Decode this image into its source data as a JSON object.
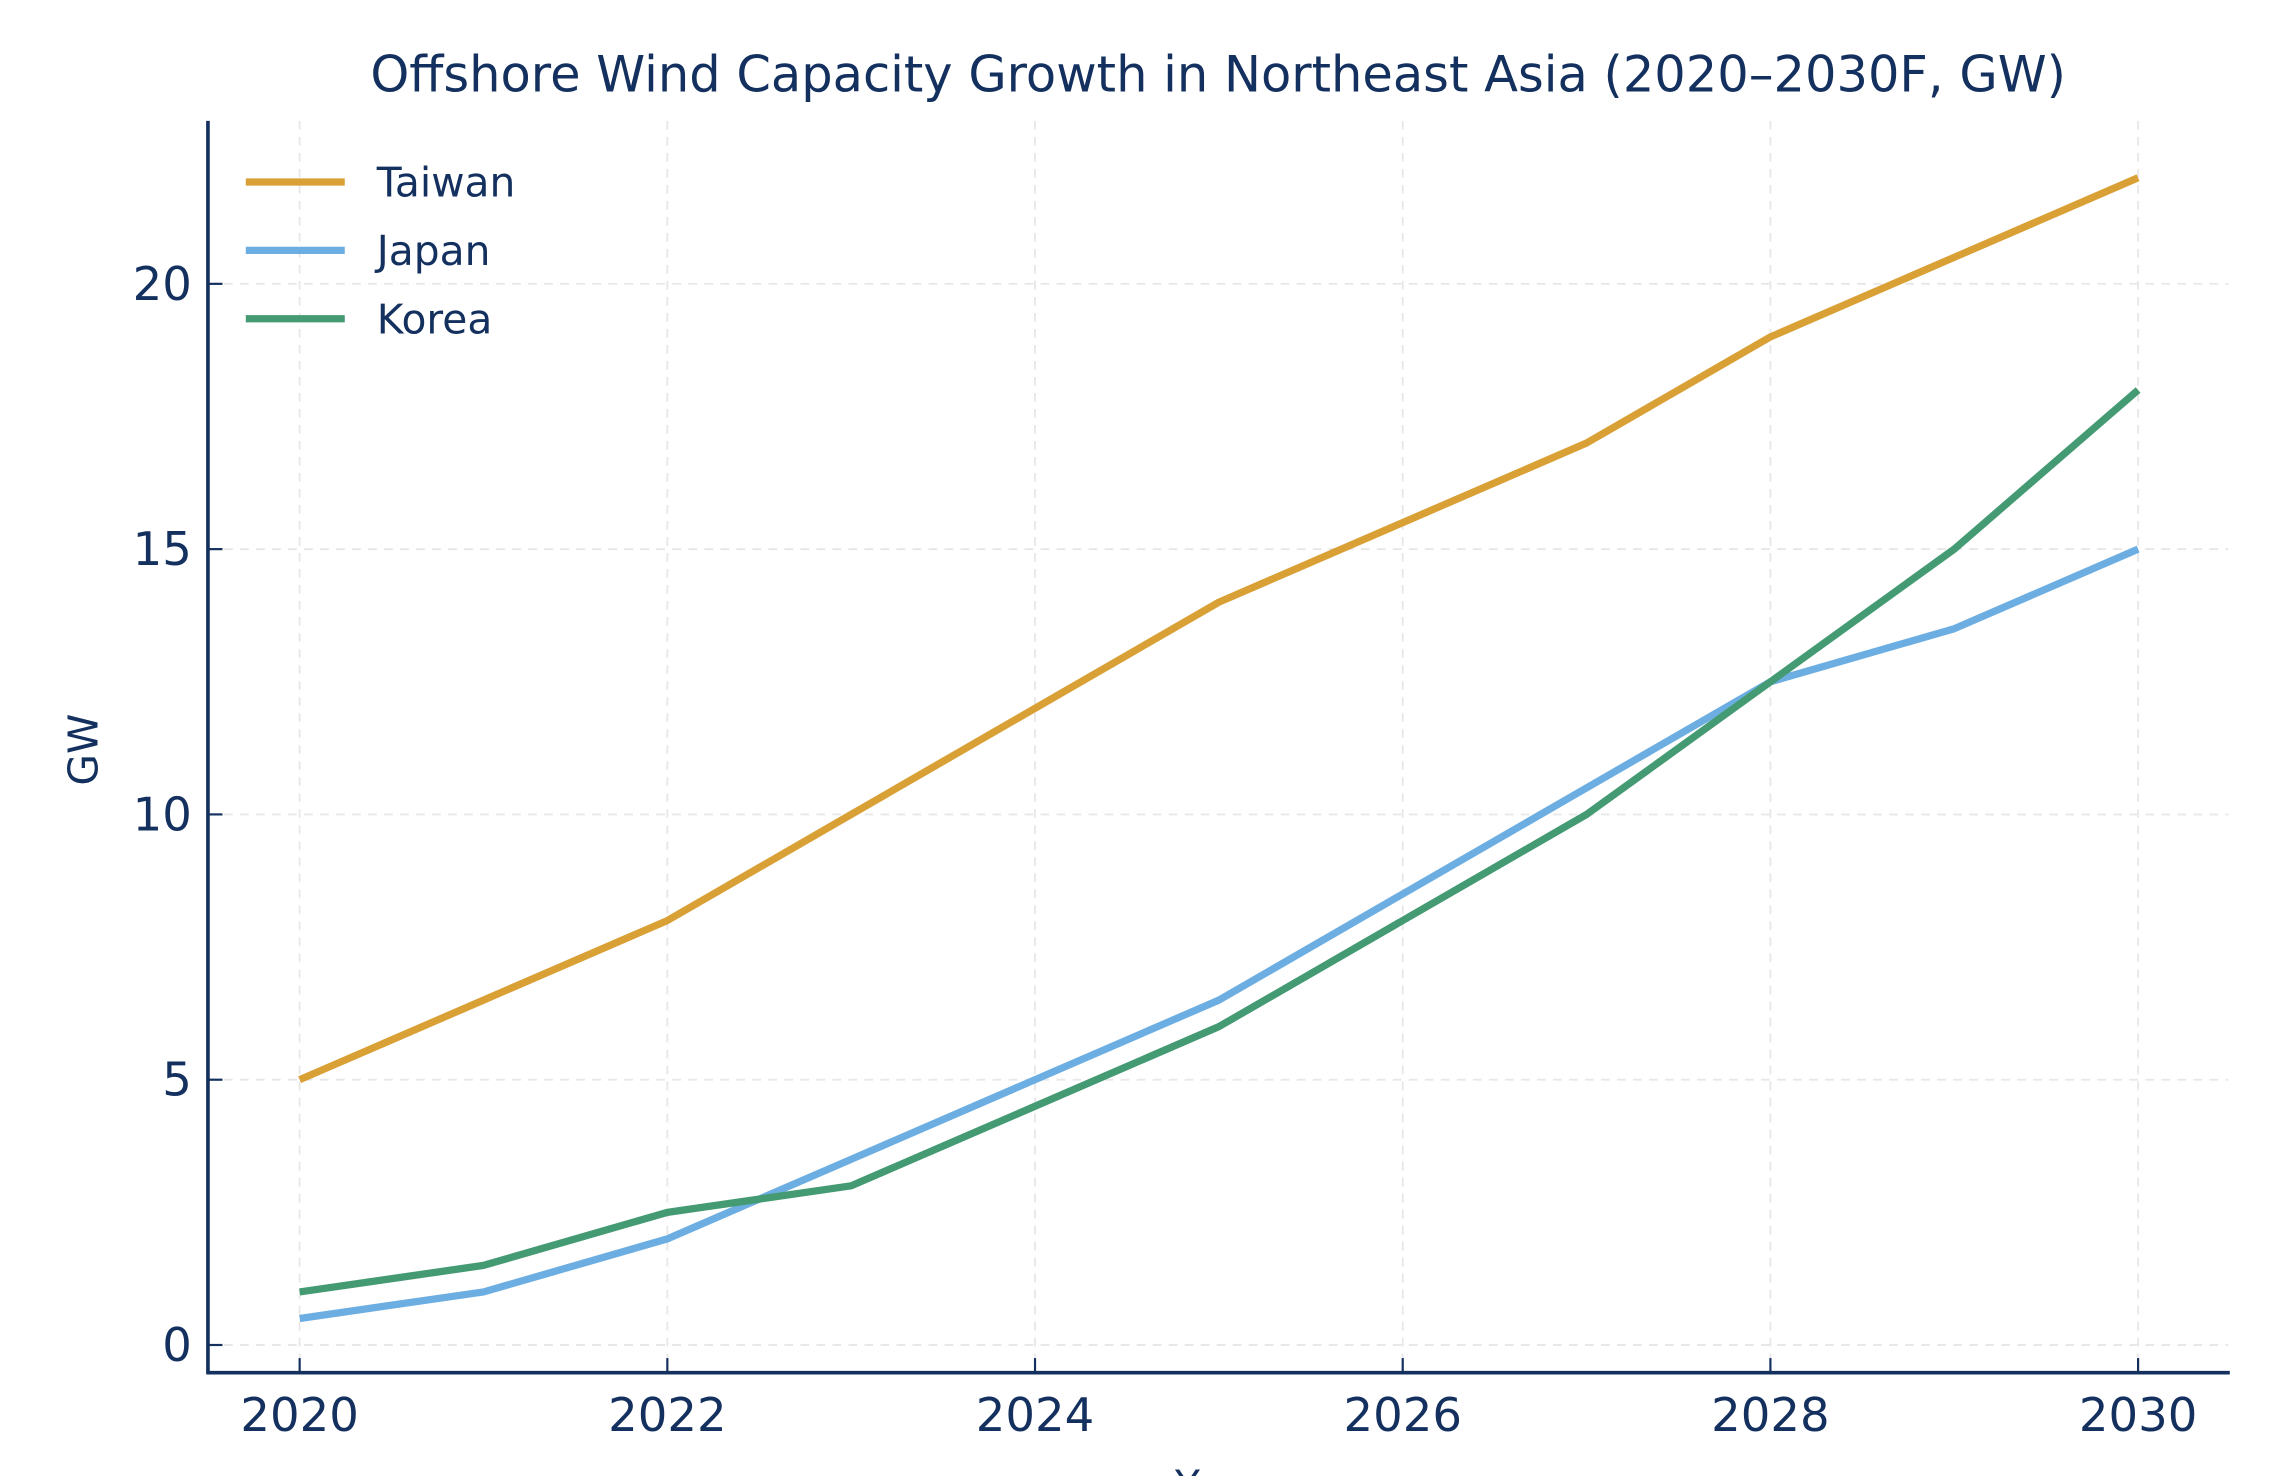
{
  "chart_data": {
    "type": "line",
    "title": "Offshore Wind Capacity Growth in Northeast Asia (2020–2030F, GW)",
    "xlabel": "Year",
    "ylabel": "GW",
    "x": [
      2020,
      2021,
      2022,
      2023,
      2024,
      2025,
      2026,
      2027,
      2028,
      2029,
      2030
    ],
    "xticks": [
      2020,
      2022,
      2024,
      2026,
      2028,
      2030
    ],
    "yticks": [
      0,
      5,
      10,
      15,
      20
    ],
    "xlim": [
      2019.5,
      2030.5
    ],
    "ylim": [
      -0.55,
      23.1
    ],
    "grid": true,
    "legend": "top-left",
    "series": [
      {
        "name": "Taiwan",
        "color": "#d9a035",
        "values": [
          5,
          6.5,
          8,
          10,
          12,
          14,
          15.5,
          17,
          19,
          20.5,
          22
        ]
      },
      {
        "name": "Japan",
        "color": "#6daee2",
        "values": [
          0.5,
          1,
          2,
          3.5,
          5,
          6.5,
          8.5,
          10.5,
          12.5,
          13.5,
          15
        ]
      },
      {
        "name": "Korea",
        "color": "#449a72",
        "values": [
          1,
          1.5,
          2.5,
          3,
          4.5,
          6,
          8,
          10,
          12.5,
          15,
          18
        ]
      }
    ]
  }
}
